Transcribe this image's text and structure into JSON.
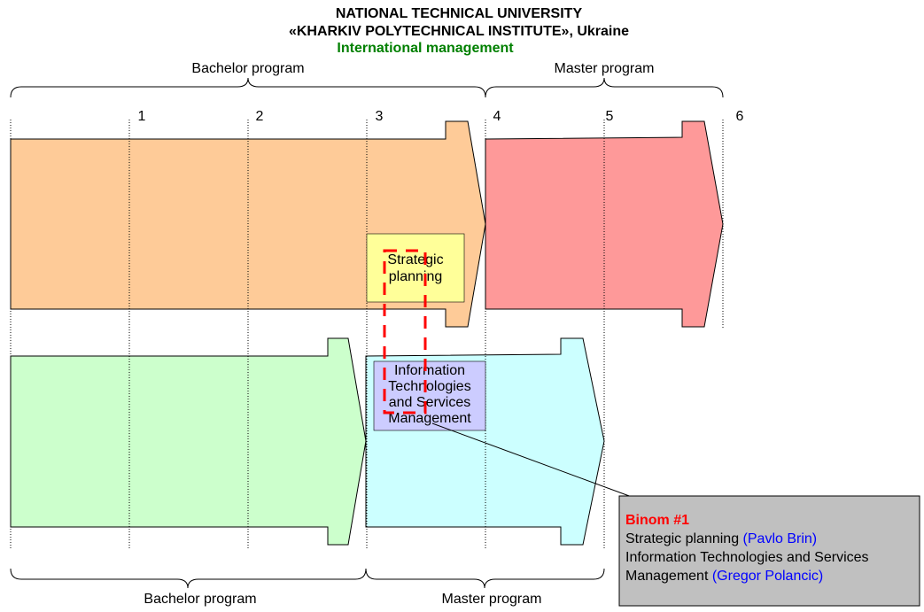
{
  "header": {
    "title": [
      "NATIONAL TECHNICAL UNIVERSITY",
      "«KHARKIV POLYTECHNICAL INSTITUTE», Ukraine"
    ],
    "subtitle": "International management"
  },
  "top_programs": [
    "Bachelor program",
    "Master program"
  ],
  "years": [
    1,
    2,
    3,
    4,
    5,
    6
  ],
  "courses": [
    {
      "lines": [
        "Strategic",
        "planning"
      ]
    },
    {
      "lines": [
        "Information",
        "Technologies",
        "and Services",
        "Management"
      ]
    }
  ],
  "bottom_programs": [
    "Bachelor program",
    "Master program"
  ],
  "callout": {
    "title": "Binom #1",
    "lines": [
      {
        "text": "Strategic planning",
        "person": "(Pavlo Brin)"
      },
      {
        "text": "Information Technologies and Services"
      },
      {
        "text": "Management",
        "person": "(Gregor Polancic)"
      }
    ]
  }
}
